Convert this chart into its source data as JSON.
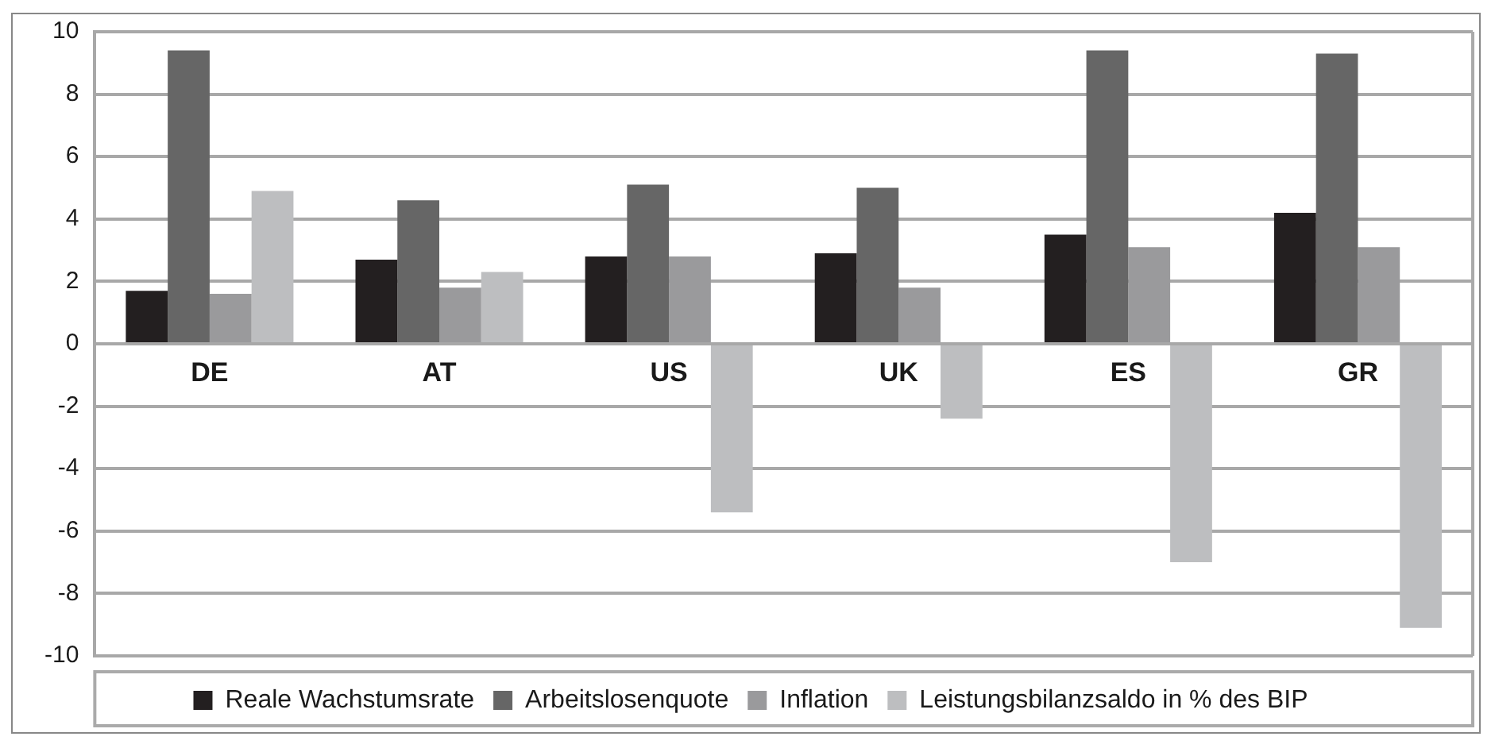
{
  "chart_data": {
    "type": "bar",
    "categories": [
      "DE",
      "AT",
      "US",
      "UK",
      "ES",
      "GR"
    ],
    "series": [
      {
        "name": "Reale Wachstumsrate",
        "color": "#231f20",
        "values": [
          1.7,
          2.7,
          2.8,
          2.9,
          3.5,
          4.2
        ]
      },
      {
        "name": "Arbeitslosenquote",
        "color": "#666666",
        "values": [
          9.4,
          4.6,
          5.1,
          5.0,
          9.4,
          9.3
        ]
      },
      {
        "name": "Inflation",
        "color": "#9a9a9c",
        "values": [
          1.6,
          1.8,
          2.8,
          1.8,
          3.1,
          3.1
        ]
      },
      {
        "name": "Leistungsbilanzsaldo in % des BIP",
        "color": "#bdbec0",
        "values": [
          4.9,
          2.3,
          -5.4,
          -2.4,
          -7.0,
          -9.1
        ]
      }
    ],
    "ylim": [
      -10,
      10
    ],
    "yticks": [
      -10,
      -8,
      -6,
      -4,
      -2,
      0,
      2,
      4,
      6,
      8,
      10
    ],
    "grid": "y",
    "legend": "bottom"
  }
}
